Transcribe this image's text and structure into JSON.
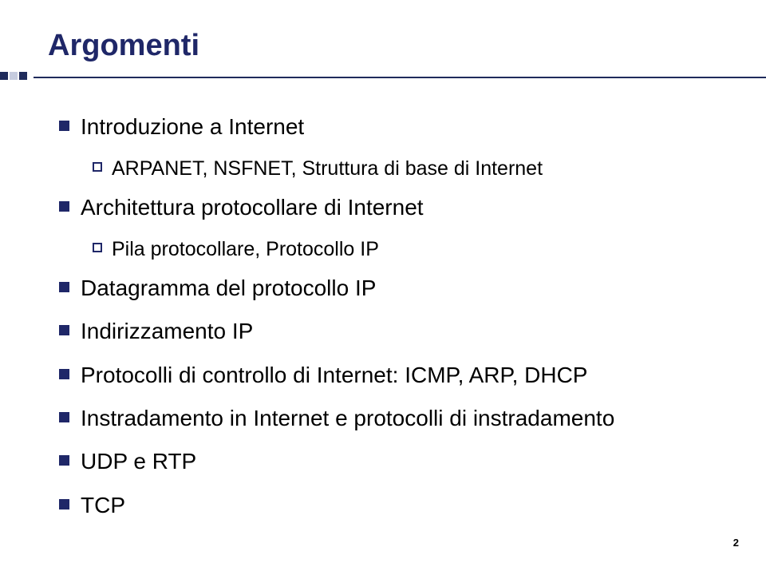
{
  "title": "Argomenti",
  "accent": {
    "dark": "#1f2b5b",
    "pale": "#c6ccdf",
    "title_color": "#1f2768"
  },
  "items": [
    {
      "text": "Introduzione a Internet",
      "children": [
        {
          "text": "ARPANET, NSFNET, Struttura di base di Internet"
        }
      ]
    },
    {
      "text": "Architettura protocollare di Internet",
      "children": [
        {
          "text": "Pila protocollare, Protocollo IP"
        }
      ]
    },
    {
      "text": "Datagramma del protocollo IP",
      "children": []
    },
    {
      "text": "Indirizzamento IP",
      "children": []
    },
    {
      "text": "Protocolli di controllo di Internet: ICMP, ARP, DHCP",
      "children": []
    },
    {
      "text": "Instradamento in Internet e protocolli di instradamento",
      "children": []
    },
    {
      "text": "UDP e RTP",
      "children": []
    },
    {
      "text": "TCP",
      "children": []
    }
  ],
  "page_number": "2"
}
